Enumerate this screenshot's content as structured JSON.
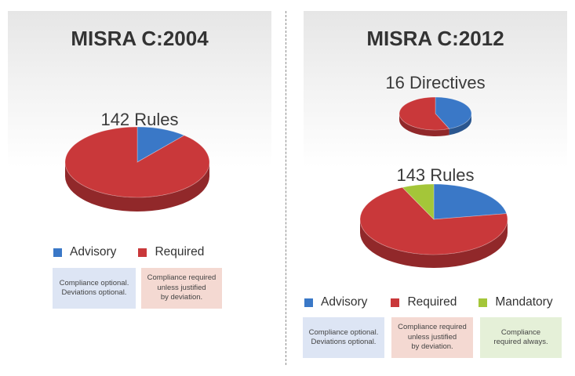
{
  "colors": {
    "advisory": "#3a78c7",
    "required": "#c9383a",
    "mandatory": "#a4c639",
    "note_advisory": "#dde5f4",
    "note_required": "#f4d9d2",
    "note_mandatory": "#e5f0d8"
  },
  "left": {
    "title": "MISRA C:2004",
    "legend": [
      "Advisory",
      "Required"
    ],
    "notes": [
      "Compliance optional.\nDeviations optional.",
      "Compliance required\nunless justified\nby deviation."
    ]
  },
  "right": {
    "title": "MISRA C:2012",
    "legend": [
      "Advisory",
      "Required",
      "Mandatory"
    ],
    "notes": [
      "Compliance optional.\nDeviations optional.",
      "Compliance required\nunless justified\nby deviation.",
      "Compliance\nrequired always."
    ]
  },
  "chart_data": [
    {
      "type": "pie",
      "title": "142 Rules",
      "categories": [
        "Advisory",
        "Required"
      ],
      "values": [
        16,
        126
      ]
    },
    {
      "type": "pie",
      "title": "16 Directives",
      "categories": [
        "Advisory",
        "Required"
      ],
      "values": [
        7,
        9
      ]
    },
    {
      "type": "pie",
      "title": "143 Rules",
      "categories": [
        "Advisory",
        "Required",
        "Mandatory"
      ],
      "values": [
        32,
        101,
        10
      ]
    }
  ]
}
